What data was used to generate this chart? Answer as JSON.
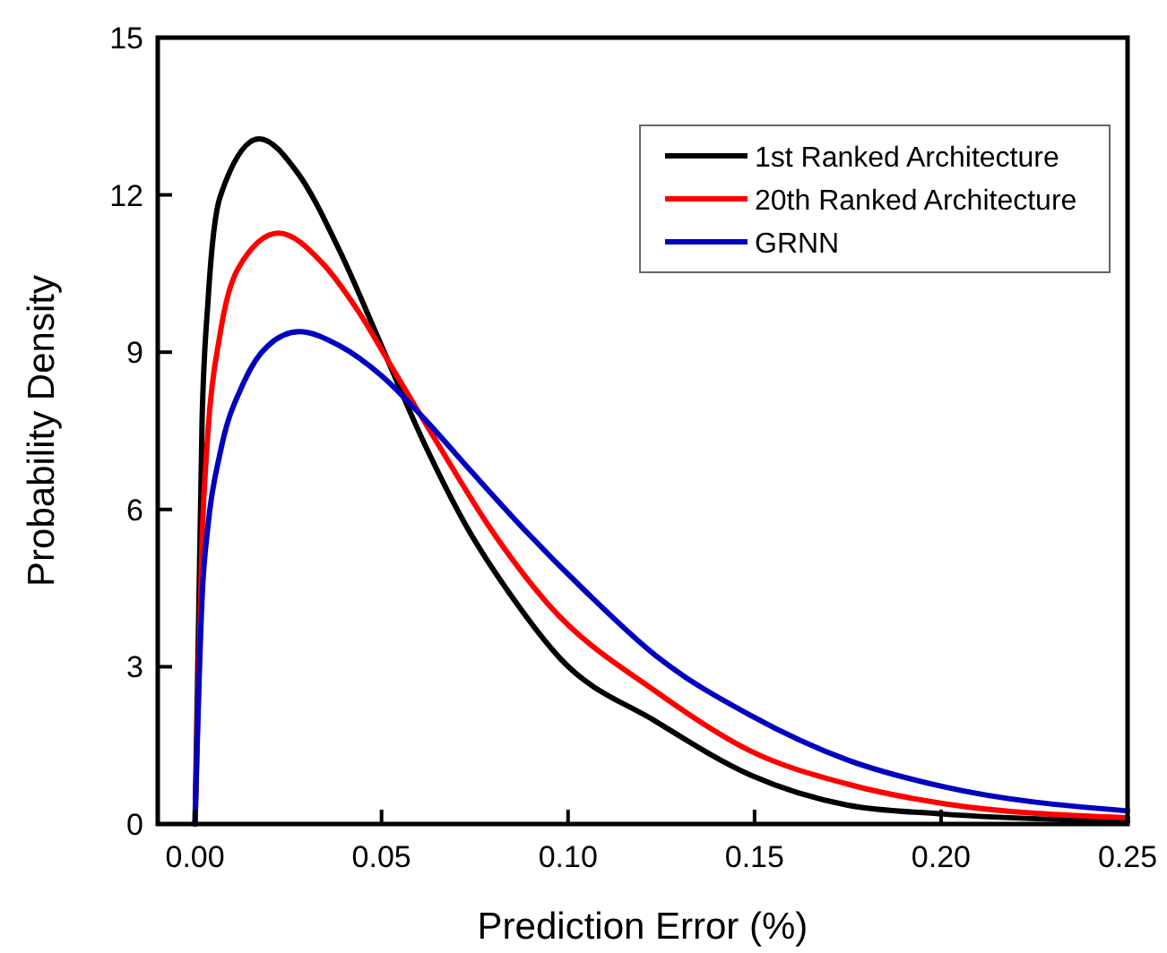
{
  "chart_data": {
    "type": "line",
    "xlabel": "Prediction Error (%)",
    "ylabel": "Probability Density",
    "xlim": [
      -0.01,
      0.25
    ],
    "xticks": [
      {
        "value": 0,
        "label": "0.00"
      },
      {
        "value": 0.05,
        "label": "0.05"
      },
      {
        "value": 0.1,
        "label": "0.10"
      },
      {
        "value": 0.15,
        "label": "0.15"
      },
      {
        "value": 0.2,
        "label": "0.20"
      },
      {
        "value": 0.25,
        "label": "0.25"
      }
    ],
    "ylim": [
      0,
      15
    ],
    "yticks": [
      0,
      3,
      6,
      9,
      12,
      15
    ],
    "grid": false,
    "legend": "top right",
    "marker": "none",
    "line_style": "solid",
    "series": [
      {
        "name": "1st Ranked Architecture",
        "color": "#000000",
        "x": [
          0,
          0.0019,
          0.0035,
          0.0067,
          0.0172,
          0.0276,
          0.0388,
          0.05,
          0.0612,
          0.0725,
          0.0853,
          0.098,
          0.1237,
          0.149,
          0.175,
          0.2007,
          0.25
        ],
        "values": [
          0,
          7.75,
          10.0,
          11.96,
          13.07,
          12.41,
          10.93,
          9.12,
          7.3,
          5.71,
          4.3,
          3.15,
          1.95,
          0.93,
          0.36,
          0.19,
          0.05
        ]
      },
      {
        "name": "20th Ranked Architecture",
        "color": "#ff0000",
        "x": [
          0,
          0.0019,
          0.0035,
          0.0067,
          0.0115,
          0.0224,
          0.034,
          0.0436,
          0.0532,
          0.0657,
          0.0785,
          0.0946,
          0.1237,
          0.149,
          0.175,
          0.2007,
          0.25
        ],
        "values": [
          0,
          5.48,
          7.52,
          9.34,
          10.59,
          11.27,
          10.71,
          9.8,
          8.66,
          7.18,
          5.71,
          4.2,
          2.52,
          1.39,
          0.76,
          0.39,
          0.12
        ]
      },
      {
        "name": "GRNN",
        "color": "#0000c0",
        "x": [
          0,
          0.0019,
          0.0035,
          0.0067,
          0.0131,
          0.0195,
          0.0279,
          0.0388,
          0.05,
          0.0612,
          0.074,
          0.0885,
          0.1045,
          0.1237,
          0.149,
          0.175,
          0.2007,
          0.25
        ],
        "values": [
          0,
          4.34,
          5.71,
          7.07,
          8.43,
          9.12,
          9.39,
          9.12,
          8.55,
          7.75,
          6.73,
          5.6,
          4.45,
          3.2,
          2.07,
          1.22,
          0.71,
          0.25
        ]
      }
    ]
  }
}
